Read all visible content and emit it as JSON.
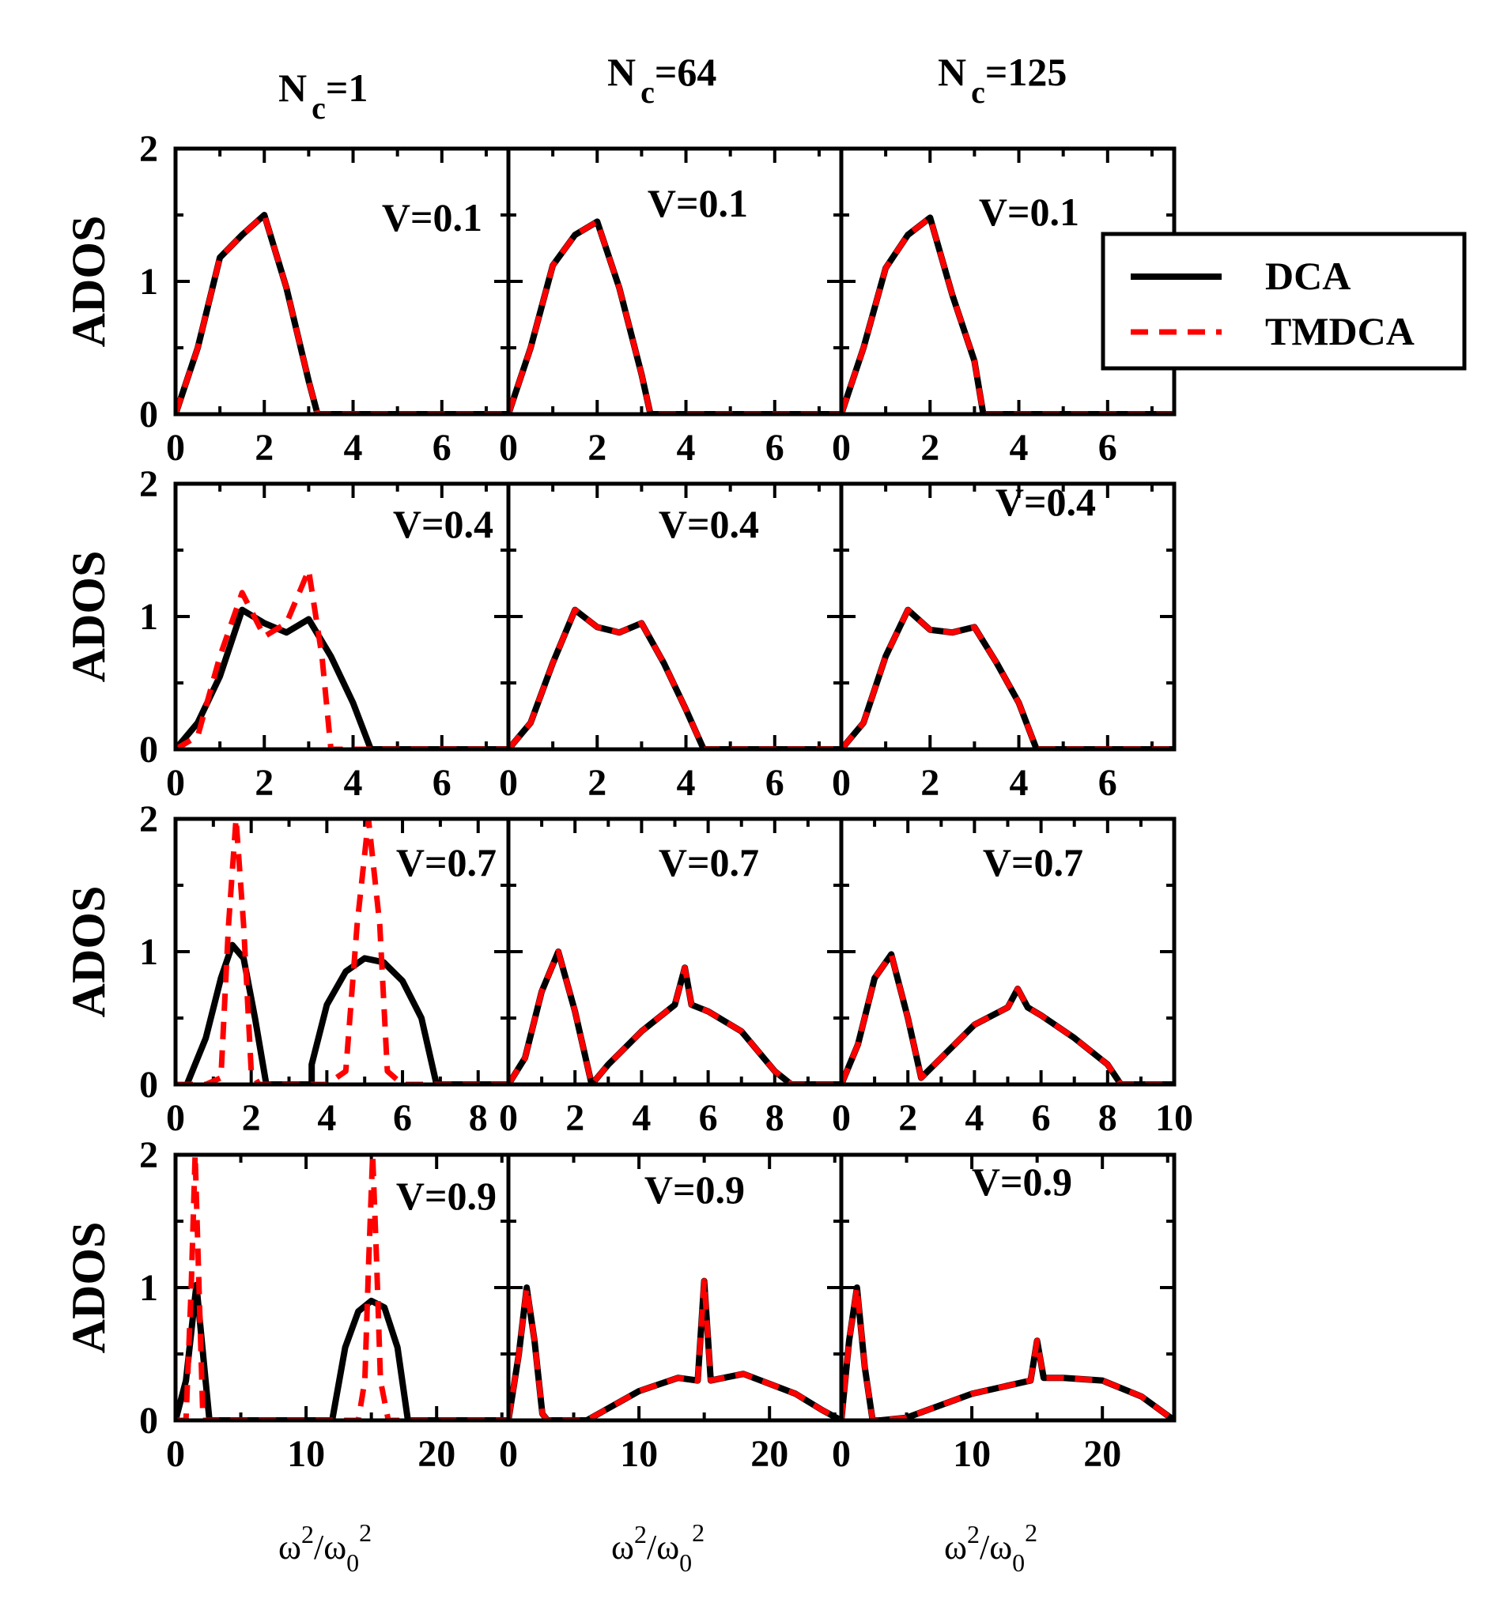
{
  "colors": {
    "dca": "#000000",
    "tmdca": "#ff0000",
    "axes": "#000000",
    "background": "#ffffff"
  },
  "columns": [
    {
      "title_main": "N",
      "title_sub": "c",
      "title_rest": "=1"
    },
    {
      "title_main": "N",
      "title_sub": "c",
      "title_rest": "=64"
    },
    {
      "title_main": "N",
      "title_sub": "c",
      "title_rest": "=125"
    }
  ],
  "ylabel": "ADOS",
  "xlabel": {
    "omega": "ω",
    "sup": "2",
    "slash": "/",
    "omega0": "ω",
    "sub0": "0",
    "sup2": "2"
  },
  "legend": {
    "position": "top-right",
    "items": [
      {
        "label": "DCA",
        "style": "solid"
      },
      {
        "label": "TMDCA",
        "style": "dashed"
      }
    ]
  },
  "chart_data": [
    {
      "type": "line",
      "row": 0,
      "col": 0,
      "label": "V=0.1",
      "xlim": [
        0,
        7.5
      ],
      "ylim": [
        0,
        2
      ],
      "xticks": [
        0,
        2,
        4,
        6
      ],
      "yticks": [
        0,
        1,
        2
      ],
      "series": [
        {
          "name": "DCA",
          "x": [
            0,
            0.5,
            1.0,
            1.5,
            2.0,
            2.5,
            3.0,
            3.2,
            7.5
          ],
          "y": [
            0,
            0.5,
            1.18,
            1.35,
            1.5,
            0.95,
            0.25,
            0,
            0
          ]
        },
        {
          "name": "TMDCA",
          "x": [
            0,
            0.5,
            1.0,
            1.5,
            2.0,
            2.5,
            3.0,
            3.2,
            7.5
          ],
          "y": [
            0,
            0.5,
            1.18,
            1.35,
            1.5,
            0.95,
            0.25,
            0,
            0
          ]
        }
      ]
    },
    {
      "type": "line",
      "row": 0,
      "col": 1,
      "label": "V=0.1",
      "xlim": [
        0,
        7.5
      ],
      "ylim": [
        0,
        2
      ],
      "xticks": [
        0,
        2,
        4,
        6
      ],
      "yticks": [
        0,
        1,
        2
      ],
      "series": [
        {
          "name": "DCA",
          "x": [
            0,
            0.5,
            1.0,
            1.5,
            2.0,
            2.5,
            3.0,
            3.2,
            7.5
          ],
          "y": [
            0,
            0.5,
            1.12,
            1.35,
            1.45,
            0.95,
            0.3,
            0,
            0
          ]
        },
        {
          "name": "TMDCA",
          "x": [
            0,
            0.5,
            1.0,
            1.5,
            2.0,
            2.5,
            3.0,
            3.2,
            7.5
          ],
          "y": [
            0,
            0.5,
            1.12,
            1.35,
            1.45,
            0.95,
            0.3,
            0,
            0
          ]
        }
      ]
    },
    {
      "type": "line",
      "row": 0,
      "col": 2,
      "label": "V=0.1",
      "xlim": [
        0,
        7.5
      ],
      "ylim": [
        0,
        2
      ],
      "xticks": [
        0,
        2,
        4,
        6
      ],
      "yticks": [
        0,
        1,
        2
      ],
      "series": [
        {
          "name": "DCA",
          "x": [
            0,
            0.5,
            1.0,
            1.5,
            2.0,
            2.5,
            3.0,
            3.2,
            7.5
          ],
          "y": [
            0,
            0.5,
            1.1,
            1.35,
            1.48,
            0.9,
            0.4,
            0,
            0
          ]
        },
        {
          "name": "TMDCA",
          "x": [
            0,
            0.5,
            1.0,
            1.5,
            2.0,
            2.5,
            3.0,
            3.2,
            7.5
          ],
          "y": [
            0,
            0.5,
            1.1,
            1.35,
            1.48,
            0.9,
            0.4,
            0,
            0
          ]
        }
      ]
    },
    {
      "type": "line",
      "row": 1,
      "col": 0,
      "label": "V=0.4",
      "xlim": [
        0,
        7.5
      ],
      "ylim": [
        0,
        2
      ],
      "xticks": [
        0,
        2,
        4,
        6
      ],
      "yticks": [
        0,
        1,
        2
      ],
      "series": [
        {
          "name": "DCA",
          "x": [
            0,
            0.5,
            1.0,
            1.5,
            2.0,
            2.5,
            3.0,
            3.5,
            4.0,
            4.4,
            7.5
          ],
          "y": [
            0,
            0.2,
            0.55,
            1.05,
            0.95,
            0.88,
            0.98,
            0.7,
            0.35,
            0,
            0
          ]
        },
        {
          "name": "TMDCA",
          "x": [
            0,
            0.5,
            1.0,
            1.5,
            2.0,
            2.5,
            3.0,
            3.3,
            3.5,
            7.5
          ],
          "y": [
            0,
            0.1,
            0.7,
            1.18,
            0.85,
            0.95,
            1.35,
            0.7,
            0,
            0
          ]
        }
      ]
    },
    {
      "type": "line",
      "row": 1,
      "col": 1,
      "label": "V=0.4",
      "xlim": [
        0,
        7.5
      ],
      "ylim": [
        0,
        2
      ],
      "xticks": [
        0,
        2,
        4,
        6
      ],
      "yticks": [
        0,
        1,
        2
      ],
      "series": [
        {
          "name": "DCA",
          "x": [
            0,
            0.5,
            1.0,
            1.5,
            2.0,
            2.5,
            3.0,
            3.5,
            4.0,
            4.4,
            7.5
          ],
          "y": [
            0,
            0.2,
            0.65,
            1.05,
            0.92,
            0.88,
            0.95,
            0.65,
            0.3,
            0,
            0
          ]
        },
        {
          "name": "TMDCA",
          "x": [
            0,
            0.5,
            1.0,
            1.5,
            2.0,
            2.5,
            3.0,
            3.5,
            4.0,
            4.4,
            7.5
          ],
          "y": [
            0,
            0.2,
            0.65,
            1.05,
            0.92,
            0.88,
            0.95,
            0.65,
            0.3,
            0,
            0
          ]
        }
      ]
    },
    {
      "type": "line",
      "row": 1,
      "col": 2,
      "label": "V=0.4",
      "xlim": [
        0,
        7.5
      ],
      "ylim": [
        0,
        2
      ],
      "xticks": [
        0,
        2,
        4,
        6
      ],
      "yticks": [
        0,
        1,
        2
      ],
      "series": [
        {
          "name": "DCA",
          "x": [
            0,
            0.5,
            1.0,
            1.5,
            2.0,
            2.5,
            3.0,
            3.5,
            4.0,
            4.4,
            7.5
          ],
          "y": [
            0,
            0.2,
            0.7,
            1.05,
            0.9,
            0.88,
            0.92,
            0.65,
            0.35,
            0,
            0
          ]
        },
        {
          "name": "TMDCA",
          "x": [
            0,
            0.5,
            1.0,
            1.5,
            2.0,
            2.5,
            3.0,
            3.5,
            4.0,
            4.4,
            7.5
          ],
          "y": [
            0,
            0.2,
            0.7,
            1.05,
            0.9,
            0.88,
            0.92,
            0.65,
            0.35,
            0,
            0
          ]
        }
      ]
    },
    {
      "type": "line",
      "row": 2,
      "col": 0,
      "label": "V=0.7",
      "xlim": [
        0,
        8.8
      ],
      "ylim": [
        0,
        2
      ],
      "xticks": [
        0,
        2,
        4,
        6,
        8
      ],
      "yticks": [
        0,
        1,
        2
      ],
      "series": [
        {
          "name": "DCA",
          "x": [
            0.3,
            0.8,
            1.2,
            1.5,
            1.8,
            2.1,
            2.4,
            3.6,
            3.6,
            4.0,
            4.5,
            5.0,
            5.5,
            6.0,
            6.5,
            6.9,
            8.8
          ],
          "y": [
            0,
            0.35,
            0.8,
            1.05,
            0.95,
            0.5,
            0,
            0,
            0.15,
            0.6,
            0.85,
            0.95,
            0.92,
            0.78,
            0.5,
            0,
            0
          ]
        },
        {
          "name": "TMDCA",
          "x": [
            0,
            0.8,
            1.2,
            1.4,
            1.6,
            1.8,
            2.0,
            2.2,
            4.0,
            4.5,
            4.8,
            5.1,
            5.4,
            5.6,
            6.0,
            6.5,
            8.8
          ],
          "y": [
            0,
            0,
            0.05,
            1.2,
            2.0,
            1.2,
            0.1,
            0,
            0,
            0.1,
            1.2,
            2.0,
            1.2,
            0.1,
            0,
            0,
            0
          ]
        }
      ]
    },
    {
      "type": "line",
      "row": 2,
      "col": 1,
      "label": "V=0.7",
      "xlim": [
        0,
        10
      ],
      "ylim": [
        0,
        2
      ],
      "xticks": [
        0,
        2,
        4,
        6,
        8
      ],
      "yticks": [
        0,
        1,
        2
      ],
      "series": [
        {
          "name": "DCA",
          "x": [
            0,
            0.5,
            1.0,
            1.5,
            2.0,
            2.5,
            3.0,
            4.0,
            5.0,
            5.3,
            5.5,
            6.0,
            7.0,
            8.0,
            8.5,
            10
          ],
          "y": [
            0,
            0.2,
            0.7,
            1.0,
            0.55,
            0,
            0.15,
            0.4,
            0.6,
            0.88,
            0.6,
            0.55,
            0.4,
            0.1,
            0,
            0
          ]
        },
        {
          "name": "TMDCA",
          "x": [
            0,
            0.5,
            1.0,
            1.5,
            2.0,
            2.5,
            3.0,
            4.0,
            5.0,
            5.3,
            5.5,
            6.0,
            7.0,
            8.0,
            8.5,
            10
          ],
          "y": [
            0,
            0.2,
            0.7,
            1.0,
            0.55,
            0,
            0.15,
            0.4,
            0.6,
            0.88,
            0.6,
            0.55,
            0.4,
            0.1,
            0,
            0
          ]
        }
      ]
    },
    {
      "type": "line",
      "row": 2,
      "col": 2,
      "label": "V=0.7",
      "xlim": [
        0,
        10
      ],
      "ylim": [
        0,
        2
      ],
      "xticks": [
        0,
        2,
        4,
        6,
        8,
        10
      ],
      "yticks": [
        0,
        1,
        2
      ],
      "series": [
        {
          "name": "DCA",
          "x": [
            0,
            0.5,
            1.0,
            1.5,
            2.0,
            2.4,
            3.0,
            4.0,
            5.0,
            5.3,
            5.6,
            6.0,
            7.0,
            8.0,
            8.4,
            10
          ],
          "y": [
            0,
            0.3,
            0.8,
            0.98,
            0.5,
            0.05,
            0.2,
            0.45,
            0.58,
            0.72,
            0.58,
            0.52,
            0.35,
            0.15,
            0,
            0
          ]
        },
        {
          "name": "TMDCA",
          "x": [
            0,
            0.5,
            1.0,
            1.5,
            2.0,
            2.4,
            3.0,
            4.0,
            5.0,
            5.3,
            5.6,
            6.0,
            7.0,
            8.0,
            8.4,
            10
          ],
          "y": [
            0,
            0.3,
            0.8,
            0.98,
            0.5,
            0.05,
            0.2,
            0.45,
            0.58,
            0.72,
            0.58,
            0.52,
            0.35,
            0.15,
            0,
            0
          ]
        }
      ]
    },
    {
      "type": "line",
      "row": 3,
      "col": 0,
      "label": "V=0.9",
      "xlim": [
        0,
        25.5
      ],
      "ylim": [
        0,
        2
      ],
      "xticks": [
        0,
        10,
        20
      ],
      "yticks": [
        0,
        1,
        2
      ],
      "series": [
        {
          "name": "DCA",
          "x": [
            0,
            0.8,
            1.6,
            2.3,
            2.6,
            12.0,
            12.0,
            13.0,
            14.0,
            15.0,
            16.0,
            17.0,
            17.8,
            25.5
          ],
          "y": [
            0,
            0.3,
            1.02,
            0.3,
            0,
            0,
            0,
            0.55,
            0.82,
            0.9,
            0.85,
            0.55,
            0,
            0
          ]
        },
        {
          "name": "TMDCA",
          "x": [
            0,
            0.8,
            1.2,
            1.5,
            1.8,
            2.1,
            14.0,
            14.5,
            14.8,
            15.1,
            15.4,
            15.7,
            16.3,
            25.5
          ],
          "y": [
            0,
            0,
            1.0,
            2.0,
            1.0,
            0,
            0,
            0.3,
            1.2,
            2.0,
            1.2,
            0.3,
            0,
            0
          ]
        }
      ]
    },
    {
      "type": "line",
      "row": 3,
      "col": 1,
      "label": "V=0.9",
      "xlim": [
        0,
        25.5
      ],
      "ylim": [
        0,
        2
      ],
      "xticks": [
        0,
        10,
        20
      ],
      "yticks": [
        0,
        1,
        2
      ],
      "series": [
        {
          "name": "DCA",
          "x": [
            0,
            0.8,
            1.4,
            2.0,
            2.6,
            3.0,
            6.0,
            10.0,
            13.0,
            14.5,
            15.0,
            15.5,
            16.5,
            18.0,
            22.0,
            24.0,
            25.5
          ],
          "y": [
            0,
            0.5,
            1.0,
            0.6,
            0.05,
            0,
            0,
            0.22,
            0.32,
            0.3,
            1.05,
            0.3,
            0.32,
            0.35,
            0.2,
            0.08,
            0
          ]
        },
        {
          "name": "TMDCA",
          "x": [
            0,
            0.8,
            1.4,
            2.0,
            2.6,
            3.0,
            6.0,
            10.0,
            13.0,
            14.5,
            15.0,
            15.5,
            16.5,
            18.0,
            22.0,
            24.0,
            25.5
          ],
          "y": [
            0,
            0.5,
            1.0,
            0.6,
            0.05,
            0,
            0,
            0.22,
            0.32,
            0.3,
            1.05,
            0.3,
            0.32,
            0.35,
            0.2,
            0.08,
            0
          ]
        }
      ]
    },
    {
      "type": "line",
      "row": 3,
      "col": 2,
      "label": "V=0.9",
      "xlim": [
        0,
        25.5
      ],
      "ylim": [
        0,
        2
      ],
      "xticks": [
        0,
        10,
        20
      ],
      "yticks": [
        0,
        1,
        2
      ],
      "series": [
        {
          "name": "DCA",
          "x": [
            0,
            0.6,
            1.2,
            1.8,
            2.4,
            3.0,
            5.0,
            10.0,
            14.5,
            15.0,
            15.5,
            17.0,
            20.0,
            23.0,
            25.5
          ],
          "y": [
            0,
            0.6,
            1.0,
            0.4,
            0,
            0,
            0.02,
            0.2,
            0.3,
            0.6,
            0.32,
            0.32,
            0.3,
            0.18,
            0
          ]
        },
        {
          "name": "TMDCA",
          "x": [
            0,
            0.6,
            1.2,
            1.8,
            2.4,
            3.0,
            5.0,
            10.0,
            14.5,
            15.0,
            15.5,
            17.0,
            20.0,
            23.0,
            25.5
          ],
          "y": [
            0,
            0.6,
            1.0,
            0.4,
            0,
            0,
            0.02,
            0.2,
            0.3,
            0.6,
            0.32,
            0.32,
            0.3,
            0.18,
            0
          ]
        }
      ]
    }
  ]
}
